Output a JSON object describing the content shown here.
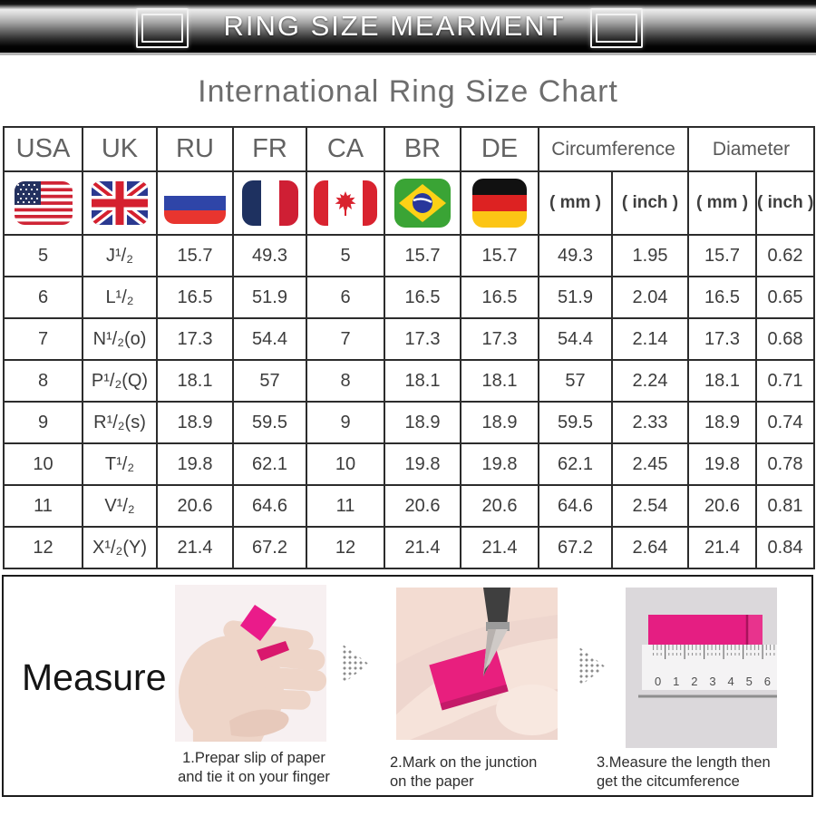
{
  "banner": {
    "title": "RING SIZE MEARMENT",
    "icons": [
      "square-outline-icon",
      "square-outline-icon"
    ]
  },
  "page_title": "International Ring Size Chart",
  "table": {
    "columns": [
      "USA",
      "UK",
      "RU",
      "FR",
      "CA",
      "BR",
      "DE"
    ],
    "flags": [
      "flag-usa",
      "flag-uk",
      "flag-ru",
      "flag-fr",
      "flag-ca",
      "flag-br",
      "flag-de"
    ],
    "group_headers": [
      {
        "label": "Circumference"
      },
      {
        "label": "Diameter"
      }
    ],
    "unit_headers": [
      "( mm )",
      "( inch )",
      "( mm )",
      "( inch )"
    ]
  },
  "chart_data": {
    "type": "table",
    "title": "International Ring Size Chart",
    "columns": [
      "USA",
      "UK",
      "RU",
      "FR",
      "CA",
      "BR",
      "DE",
      "Circumference ( mm )",
      "Circumference ( inch )",
      "Diameter ( mm )",
      "Diameter ( inch )"
    ],
    "rows": [
      [
        "5",
        "J¹/₂",
        "15.7",
        "49.3",
        "5",
        "15.7",
        "15.7",
        "49.3",
        "1.95",
        "15.7",
        "0.62"
      ],
      [
        "6",
        "L¹/₂",
        "16.5",
        "51.9",
        "6",
        "16.5",
        "16.5",
        "51.9",
        "2.04",
        "16.5",
        "0.65"
      ],
      [
        "7",
        "N¹/₂(o)",
        "17.3",
        "54.4",
        "7",
        "17.3",
        "17.3",
        "54.4",
        "2.14",
        "17.3",
        "0.68"
      ],
      [
        "8",
        "P¹/₂(Q)",
        "18.1",
        "57",
        "8",
        "18.1",
        "18.1",
        "57",
        "2.24",
        "18.1",
        "0.71"
      ],
      [
        "9",
        "R¹/₂(s)",
        "18.9",
        "59.5",
        "9",
        "18.9",
        "18.9",
        "59.5",
        "2.33",
        "18.9",
        "0.74"
      ],
      [
        "10",
        "T¹/₂",
        "19.8",
        "62.1",
        "10",
        "19.8",
        "19.8",
        "62.1",
        "2.45",
        "19.8",
        "0.78"
      ],
      [
        "11",
        "V¹/₂",
        "20.6",
        "64.6",
        "11",
        "20.6",
        "20.6",
        "64.6",
        "2.54",
        "20.6",
        "0.81"
      ],
      [
        "12",
        "X¹/₂(Y)",
        "21.4",
        "67.2",
        "12",
        "21.4",
        "21.4",
        "67.2",
        "2.64",
        "21.4",
        "0.84"
      ]
    ]
  },
  "measure": {
    "label": "Measure",
    "steps": [
      {
        "line1": "1.Prepar slip of paper",
        "line2": "and tie it on your finger",
        "image": "hand-with-paper-slip-photo"
      },
      {
        "line1": "2.Mark on the junction",
        "line2": "on the paper",
        "image": "marking-paper-on-finger-photo"
      },
      {
        "line1": "3.Measure the length then",
        "line2": "get the citcumference",
        "image": "ruler-measuring-strip-photo"
      }
    ],
    "ruler_numbers": [
      "0",
      "1",
      "2",
      "3",
      "4",
      "5",
      "6"
    ]
  },
  "colors": {
    "accent_pink": "#e81f7e",
    "banner_black": "#000000",
    "table_border": "#2c2c2c",
    "title_gray": "#6d6d6d",
    "caption_dark": "#2e2e2e"
  }
}
